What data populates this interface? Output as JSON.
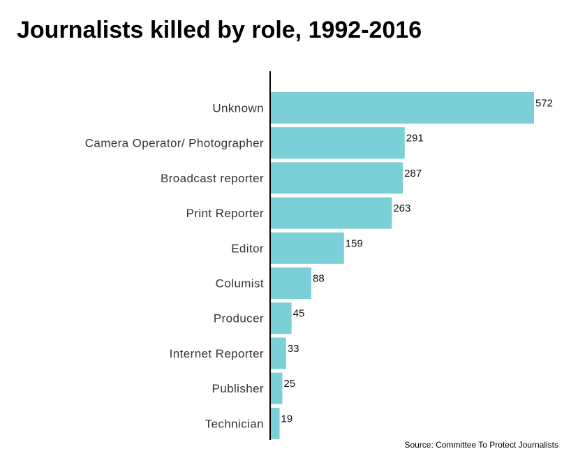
{
  "chart_data": {
    "type": "bar",
    "orientation": "horizontal",
    "title": "Journalists killed by role, 1992-2016",
    "categories": [
      "Unknown",
      "Camera Operator/ Photographer",
      "Broadcast reporter",
      "Print Reporter",
      "Editor",
      "Columist",
      "Producer",
      "Internet Reporter",
      "Publisher",
      "Technician"
    ],
    "values": [
      572,
      291,
      287,
      263,
      159,
      88,
      45,
      33,
      25,
      19
    ],
    "xlabel": "",
    "ylabel": "",
    "xlim": [
      0,
      572
    ],
    "grid": false,
    "legend": "none",
    "bar_color": "#7bcfd6",
    "source": "Source: Committee To Protect Journalists"
  }
}
